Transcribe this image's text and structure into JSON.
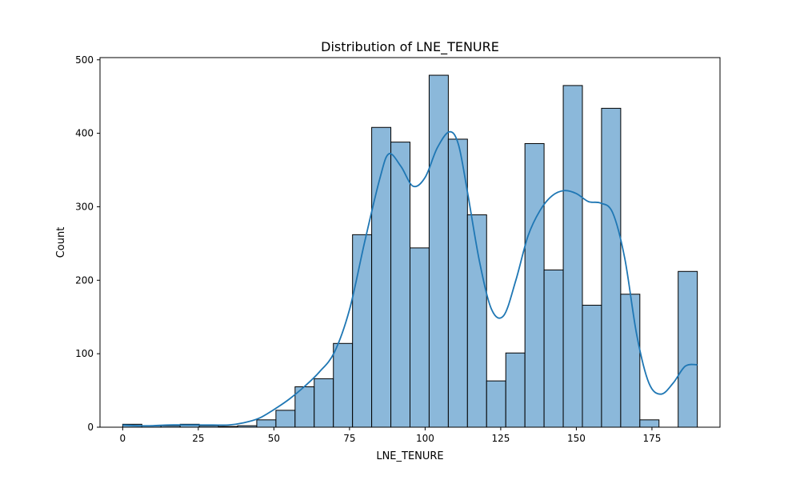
{
  "chart_data": {
    "type": "bar",
    "title": "Distribution of LNE_TENURE",
    "xlabel": "LNE_TENURE",
    "ylabel": "Count",
    "xlim": [
      -7.5,
      197.5
    ],
    "ylim": [
      0,
      503
    ],
    "bin_width": 6.33,
    "bins": [
      {
        "x0": 0.0,
        "x1": 6.33,
        "count": 4
      },
      {
        "x0": 6.33,
        "x1": 12.67,
        "count": 2
      },
      {
        "x0": 12.67,
        "x1": 19.0,
        "count": 2
      },
      {
        "x0": 19.0,
        "x1": 25.33,
        "count": 4
      },
      {
        "x0": 25.33,
        "x1": 31.67,
        "count": 2
      },
      {
        "x0": 31.67,
        "x1": 38.0,
        "count": 1
      },
      {
        "x0": 38.0,
        "x1": 44.33,
        "count": 2
      },
      {
        "x0": 44.33,
        "x1": 50.67,
        "count": 10
      },
      {
        "x0": 50.67,
        "x1": 57.0,
        "count": 23
      },
      {
        "x0": 57.0,
        "x1": 63.33,
        "count": 55
      },
      {
        "x0": 63.33,
        "x1": 69.67,
        "count": 66
      },
      {
        "x0": 69.67,
        "x1": 76.0,
        "count": 114
      },
      {
        "x0": 76.0,
        "x1": 82.33,
        "count": 262
      },
      {
        "x0": 82.33,
        "x1": 88.67,
        "count": 408
      },
      {
        "x0": 88.67,
        "x1": 95.0,
        "count": 388
      },
      {
        "x0": 95.0,
        "x1": 101.33,
        "count": 244
      },
      {
        "x0": 101.33,
        "x1": 107.67,
        "count": 479
      },
      {
        "x0": 107.67,
        "x1": 114.0,
        "count": 392
      },
      {
        "x0": 114.0,
        "x1": 120.33,
        "count": 289
      },
      {
        "x0": 120.33,
        "x1": 126.67,
        "count": 63
      },
      {
        "x0": 126.67,
        "x1": 133.0,
        "count": 101
      },
      {
        "x0": 133.0,
        "x1": 139.33,
        "count": 386
      },
      {
        "x0": 139.33,
        "x1": 145.67,
        "count": 214
      },
      {
        "x0": 145.67,
        "x1": 152.0,
        "count": 465
      },
      {
        "x0": 152.0,
        "x1": 158.33,
        "count": 166
      },
      {
        "x0": 158.33,
        "x1": 164.67,
        "count": 434
      },
      {
        "x0": 164.67,
        "x1": 171.0,
        "count": 181
      },
      {
        "x0": 171.0,
        "x1": 177.33,
        "count": 10
      },
      {
        "x0": 177.33,
        "x1": 183.67,
        "count": 0
      },
      {
        "x0": 183.67,
        "x1": 190.0,
        "count": 212
      }
    ],
    "kde": {
      "x": [
        0,
        5,
        10,
        15,
        20,
        25,
        30,
        35,
        40,
        45,
        50,
        55,
        60,
        65,
        70,
        75,
        80,
        85,
        88,
        92,
        96,
        100,
        104,
        108,
        111,
        114,
        118,
        122,
        126,
        130,
        134,
        138,
        142,
        146,
        150,
        154,
        158,
        162,
        166,
        170,
        174,
        178,
        182,
        186,
        190
      ],
      "y": [
        3,
        2,
        2,
        3,
        3,
        3,
        3,
        3,
        6,
        12,
        24,
        38,
        55,
        75,
        102,
        160,
        252,
        338,
        372,
        355,
        328,
        340,
        380,
        402,
        385,
        320,
        225,
        160,
        152,
        200,
        260,
        295,
        315,
        322,
        318,
        307,
        305,
        292,
        230,
        125,
        60,
        45,
        60,
        83,
        85
      ]
    },
    "xticks": [
      0,
      25,
      50,
      75,
      100,
      125,
      150,
      175
    ],
    "yticks": [
      0,
      100,
      200,
      300,
      400,
      500
    ],
    "colors": {
      "bar_fill": "#8bb8da",
      "bar_edge": "#000000",
      "kde_line": "#1f77b4"
    },
    "grid": false,
    "legend": "none"
  }
}
